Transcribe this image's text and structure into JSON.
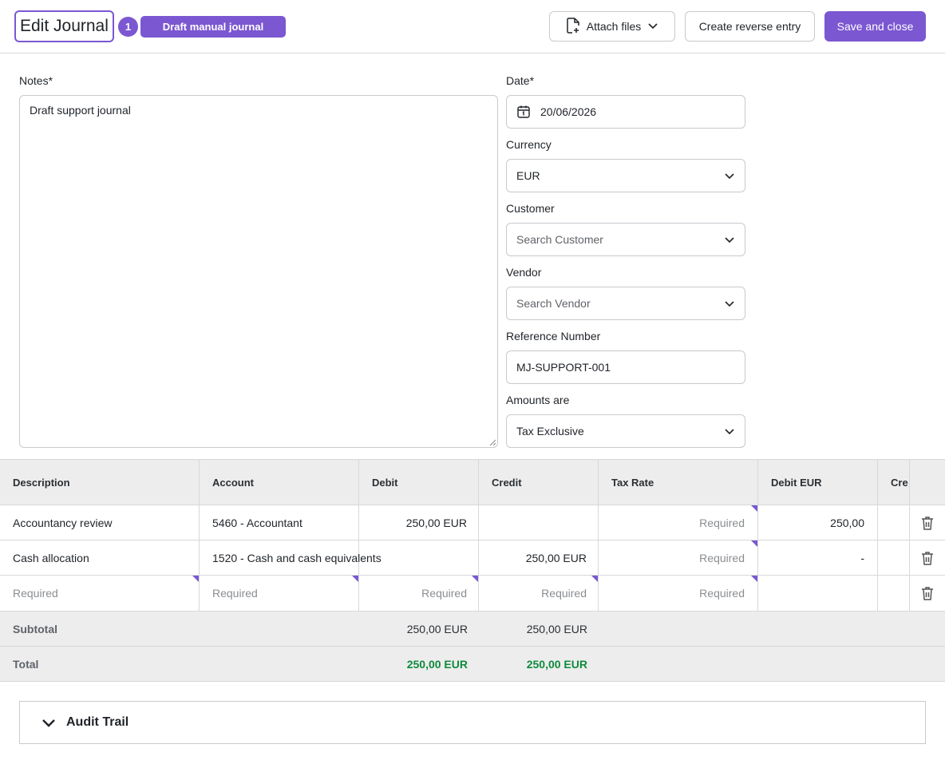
{
  "header": {
    "title": "Edit Journal",
    "step_number": "1",
    "status_badge": "Draft manual journal",
    "attach_label": "Attach files",
    "reverse_label": "Create reverse entry",
    "save_label": "Save and close"
  },
  "form": {
    "notes_label": "Notes*",
    "notes_value": "Draft support journal",
    "date_label": "Date*",
    "date_value": "20/06/2026",
    "currency_label": "Currency",
    "currency_value": "EUR",
    "customer_label": "Customer",
    "customer_placeholder": "Search Customer",
    "vendor_label": "Vendor",
    "vendor_placeholder": "Search Vendor",
    "reference_label": "Reference Number",
    "reference_value": "MJ-SUPPORT-001",
    "amounts_label": "Amounts are",
    "amounts_value": "Tax Exclusive"
  },
  "table": {
    "headers": [
      "Description",
      "Account",
      "Debit",
      "Credit",
      "Tax Rate",
      "Debit EUR",
      "Cre"
    ],
    "rows": [
      {
        "description": "Accountancy review",
        "account": "5460 - Accountant",
        "debit": "250,00 EUR",
        "credit": "",
        "tax_rate": "Required",
        "debit_eur": "250,00"
      },
      {
        "description": "Cash allocation",
        "account": "1520 - Cash and cash equivalents",
        "debit": "",
        "credit": "250,00 EUR",
        "tax_rate": "Required",
        "debit_eur": "-"
      },
      {
        "description": "Required",
        "account": "Required",
        "debit": "Required",
        "credit": "Required",
        "tax_rate": "Required",
        "debit_eur": ""
      }
    ],
    "subtotal": {
      "label": "Subtotal",
      "debit": "250,00 EUR",
      "credit": "250,00 EUR"
    },
    "total": {
      "label": "Total",
      "debit": "250,00 EUR",
      "credit": "250,00 EUR"
    }
  },
  "audit": {
    "title": "Audit Trail"
  },
  "colors": {
    "accent": "#7b57d1",
    "balanced_green": "#0f8a3c"
  }
}
